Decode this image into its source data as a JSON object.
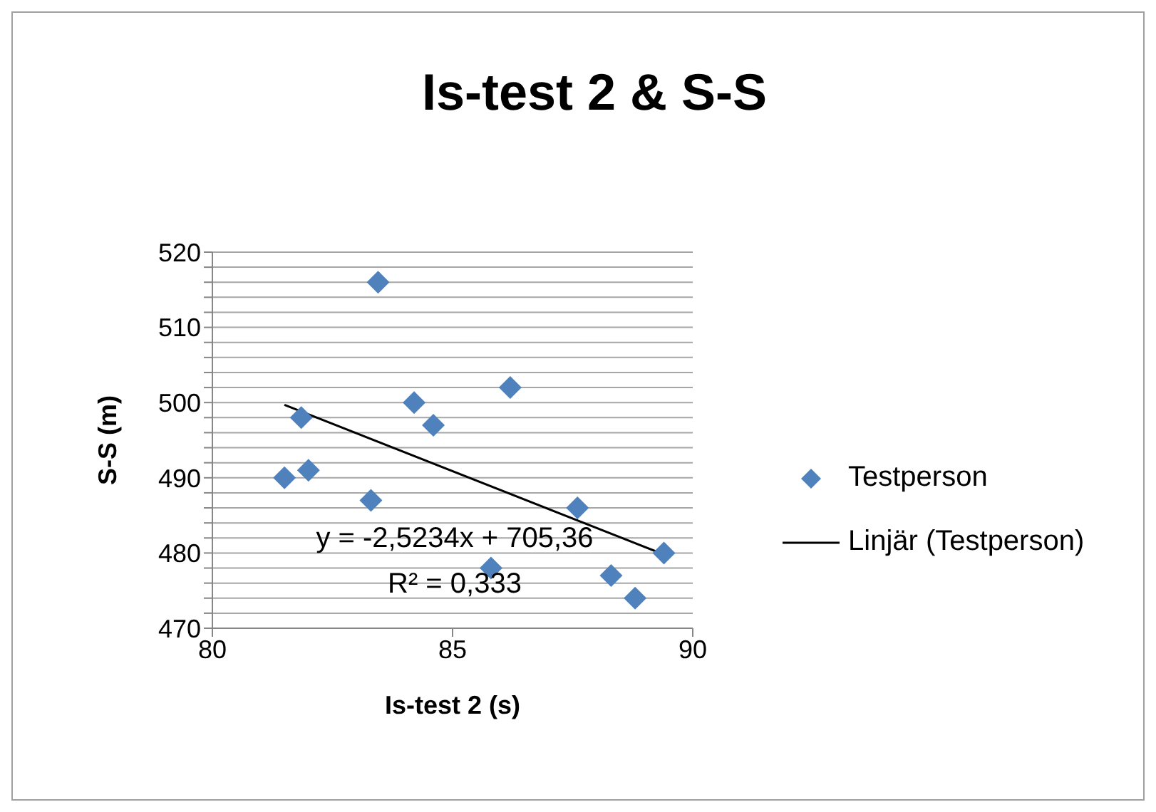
{
  "chart_data": {
    "type": "scatter",
    "title": "Is-test 2 & S-S",
    "xlabel": "Is-test 2 (s)",
    "ylabel": "S-S (m)",
    "annotations": [
      "y = -2,5234x + 705,36",
      "R² = 0,333"
    ],
    "series": [
      {
        "name": "Testperson",
        "color": "#4f81bd",
        "marker": "diamond",
        "x": [
          83.45,
          81.85,
          81.5,
          82.0,
          83.3,
          84.2,
          84.6,
          86.2,
          87.6,
          85.8,
          88.3,
          88.8,
          89.4
        ],
        "values": [
          516,
          498,
          490,
          491,
          487,
          500,
          497,
          502,
          486,
          478,
          477,
          474,
          480
        ]
      },
      {
        "name": "Linjär (Testperson)",
        "type": "line",
        "color": "#000000",
        "marker": "none",
        "x": [
          81.5,
          89.4
        ],
        "values": [
          499.7,
          479.8
        ]
      }
    ],
    "xlim": [
      80,
      90
    ],
    "xticks": [
      80,
      85,
      90
    ],
    "ylim": [
      470,
      520
    ],
    "yticks": [
      470,
      {
        "value": 472,
        "label": null
      },
      {
        "value": 474,
        "label": null
      },
      {
        "value": 476,
        "label": null
      },
      {
        "value": 478,
        "label": null
      },
      480,
      {
        "value": 482,
        "label": null
      },
      {
        "value": 484,
        "label": null
      },
      {
        "value": 486,
        "label": null
      },
      {
        "value": 488,
        "label": null
      },
      490,
      {
        "value": 492,
        "label": null
      },
      {
        "value": 494,
        "label": null
      },
      {
        "value": 496,
        "label": null
      },
      {
        "value": 498,
        "label": null
      },
      500,
      {
        "value": 502,
        "label": null
      },
      {
        "value": 504,
        "label": null
      },
      {
        "value": 506,
        "label": null
      },
      {
        "value": 508,
        "label": null
      },
      510,
      {
        "value": 512,
        "label": null
      },
      {
        "value": 514,
        "label": null
      },
      {
        "value": 516,
        "label": null
      },
      {
        "value": 518,
        "label": null
      },
      520
    ],
    "grid": "y",
    "legend": "right"
  }
}
